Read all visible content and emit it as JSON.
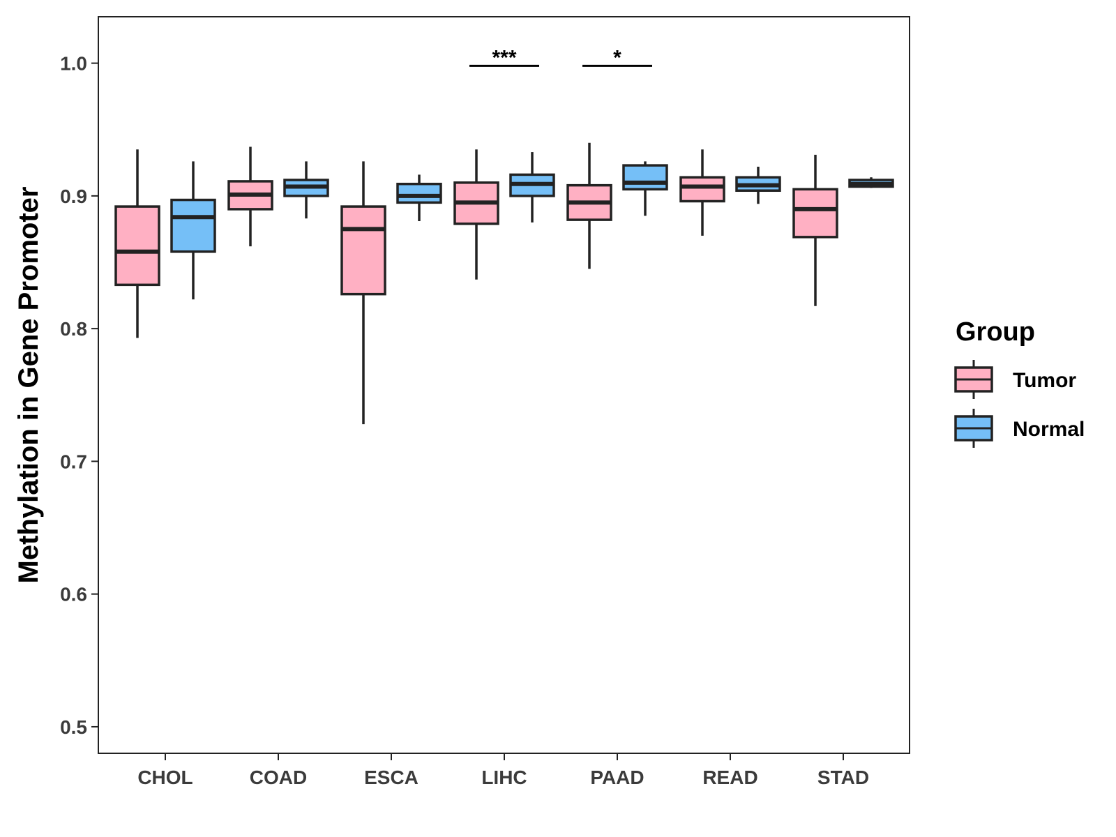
{
  "colors": {
    "tumor": "#FFB0C3",
    "normal": "#75BFF7",
    "stroke": "#222222"
  },
  "legend": {
    "title": "Group",
    "items": [
      {
        "label": "Tumor",
        "group": "tumor"
      },
      {
        "label": "Normal",
        "group": "normal"
      }
    ]
  },
  "chart_data": {
    "type": "boxplot",
    "title": "",
    "xlabel": "",
    "ylabel": "Methylation in Gene Promoter",
    "ylim": [
      0.48,
      1.035
    ],
    "yticks": [
      0.5,
      0.6,
      0.7,
      0.8,
      0.9,
      1.0
    ],
    "ytick_labels": [
      "0.5",
      "0.6",
      "0.7",
      "0.8",
      "0.9",
      "1.0"
    ],
    "grid": false,
    "legend_position": "right",
    "categories": [
      "CHOL",
      "COAD",
      "ESCA",
      "LIHC",
      "PAAD",
      "READ",
      "STAD"
    ],
    "series": [
      {
        "name": "Tumor",
        "boxes": [
          {
            "min": 0.793,
            "q1": 0.833,
            "median": 0.858,
            "q3": 0.892,
            "max": 0.935
          },
          {
            "min": 0.862,
            "q1": 0.89,
            "median": 0.901,
            "q3": 0.911,
            "max": 0.937
          },
          {
            "min": 0.728,
            "q1": 0.826,
            "median": 0.875,
            "q3": 0.892,
            "max": 0.926
          },
          {
            "min": 0.837,
            "q1": 0.879,
            "median": 0.895,
            "q3": 0.91,
            "max": 0.935
          },
          {
            "min": 0.845,
            "q1": 0.882,
            "median": 0.895,
            "q3": 0.908,
            "max": 0.94
          },
          {
            "min": 0.87,
            "q1": 0.896,
            "median": 0.907,
            "q3": 0.914,
            "max": 0.935
          },
          {
            "min": 0.817,
            "q1": 0.869,
            "median": 0.89,
            "q3": 0.905,
            "max": 0.931
          }
        ]
      },
      {
        "name": "Normal",
        "boxes": [
          {
            "min": 0.822,
            "q1": 0.858,
            "median": 0.884,
            "q3": 0.897,
            "max": 0.926
          },
          {
            "min": 0.883,
            "q1": 0.9,
            "median": 0.907,
            "q3": 0.912,
            "max": 0.926
          },
          {
            "min": 0.881,
            "q1": 0.895,
            "median": 0.9,
            "q3": 0.909,
            "max": 0.916
          },
          {
            "min": 0.88,
            "q1": 0.9,
            "median": 0.909,
            "q3": 0.916,
            "max": 0.933
          },
          {
            "min": 0.885,
            "q1": 0.905,
            "median": 0.91,
            "q3": 0.923,
            "max": 0.926
          },
          {
            "min": 0.894,
            "q1": 0.904,
            "median": 0.908,
            "q3": 0.914,
            "max": 0.922
          },
          {
            "min": 0.906,
            "q1": 0.907,
            "median": 0.909,
            "q3": 0.912,
            "max": 0.914
          }
        ]
      }
    ],
    "annotations": [
      {
        "category": "LIHC",
        "label": "***",
        "y": 0.998
      },
      {
        "category": "PAAD",
        "label": "*",
        "y": 0.998
      }
    ]
  }
}
